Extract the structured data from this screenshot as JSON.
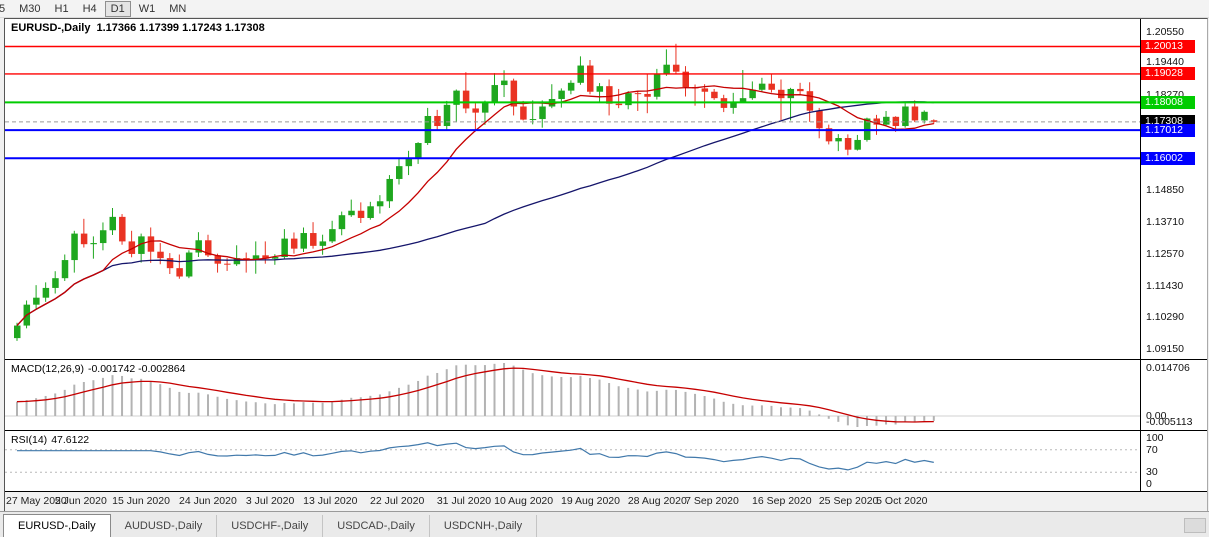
{
  "toolbar": {
    "buttons": [
      {
        "label": "5",
        "active": false
      },
      {
        "label": "M30",
        "active": false
      },
      {
        "label": "H1",
        "active": false
      },
      {
        "label": "H4",
        "active": false
      },
      {
        "label": "D1",
        "active": true
      },
      {
        "label": "W1",
        "active": false
      },
      {
        "label": "MN",
        "active": false
      }
    ]
  },
  "chart": {
    "title": "EURUSD-,Daily",
    "ohlc_text": "1.17366 1.17399 1.17243 1.17308"
  },
  "macd": {
    "label": "MACD(12,26,9)",
    "values_text": "-0.001742 -0.002864",
    "axis_max": "0.014706",
    "axis_zero": "0.00",
    "axis_min": "-0.005113"
  },
  "rsi": {
    "label": "RSI(14)",
    "value_text": "47.6122",
    "axis": [
      "100",
      "70",
      "30",
      "0"
    ],
    "levels": [
      70,
      30
    ]
  },
  "tabs": [
    {
      "label": "EURUSD-,Daily",
      "active": true
    },
    {
      "label": "AUDUSD-,Daily",
      "active": false
    },
    {
      "label": "USDCHF-,Daily",
      "active": false
    },
    {
      "label": "USDCAD-,Daily",
      "active": false
    },
    {
      "label": "USDCNH-,Daily",
      "active": false
    }
  ],
  "chart_data": {
    "type": "candlestick",
    "symbol": "EURUSD-",
    "timeframe": "Daily",
    "current_ohlc": {
      "open": 1.17366,
      "high": 1.17399,
      "low": 1.17243,
      "close": 1.17308
    },
    "current_price": 1.17308,
    "colors": {
      "up": "#1fa71f",
      "down": "#e93323",
      "ma_fast": "#c60000",
      "ma_slow": "#15156b",
      "macd_hist": "#b3b3b3",
      "macd_signal": "#c60000",
      "rsi_line": "#4179ab",
      "hline_red": "#ff0000",
      "hline_green": "#00cc00",
      "hline_blue": "#0000ff",
      "tag_black": "#000000"
    },
    "price_axis": {
      "view_max": 1.21,
      "view_min": 1.088,
      "grid_labels": [
        {
          "price": 1.2055,
          "text": "1.20550"
        },
        {
          "price": 1.1944,
          "text": "1.19440"
        },
        {
          "price": 1.1827,
          "text": "1.18270"
        },
        {
          "price": 1.1485,
          "text": "1.14850"
        },
        {
          "price": 1.1371,
          "text": "1.13710"
        },
        {
          "price": 1.1257,
          "text": "1.12570"
        },
        {
          "price": 1.1143,
          "text": "1.11430"
        },
        {
          "price": 1.1029,
          "text": "1.10290"
        },
        {
          "price": 1.0915,
          "text": "1.09150"
        }
      ],
      "tags": [
        {
          "price": 1.20013,
          "text": "1.20013",
          "bg": "#ff0000"
        },
        {
          "price": 1.19028,
          "text": "1.19028",
          "bg": "#ff0000"
        },
        {
          "price": 1.18008,
          "text": "1.18008",
          "bg": "#00cc00"
        },
        {
          "price": 1.17308,
          "text": "1.17308",
          "bg": "#000000"
        },
        {
          "price": 1.17012,
          "text": "1.17012",
          "bg": "#0000ff"
        },
        {
          "price": 1.16002,
          "text": "1.16002",
          "bg": "#0000ff"
        }
      ]
    },
    "hlines": [
      {
        "price": 1.20013,
        "color": "#ff0000",
        "thickness": 1.4
      },
      {
        "price": 1.19028,
        "color": "#ff0000",
        "thickness": 1.4
      },
      {
        "price": 1.18008,
        "color": "#00cc00",
        "thickness": 2
      },
      {
        "price": 1.17012,
        "color": "#0000ff",
        "thickness": 2
      },
      {
        "price": 1.16002,
        "color": "#0000ff",
        "thickness": 2
      }
    ],
    "date_labels": [
      {
        "index": 0,
        "text": "27 May 2020"
      },
      {
        "index": 7,
        "text": "5 Jun 2020"
      },
      {
        "index": 13,
        "text": "15 Jun 2020"
      },
      {
        "index": 20,
        "text": "24 Jun 2020"
      },
      {
        "index": 27,
        "text": "3 Jul 2020"
      },
      {
        "index": 33,
        "text": "13 Jul 2020"
      },
      {
        "index": 40,
        "text": "22 Jul 2020"
      },
      {
        "index": 47,
        "text": "31 Jul 2020"
      },
      {
        "index": 53,
        "text": "10 Aug 2020"
      },
      {
        "index": 60,
        "text": "19 Aug 2020"
      },
      {
        "index": 67,
        "text": "28 Aug 2020"
      },
      {
        "index": 73,
        "text": "7 Sep 2020"
      },
      {
        "index": 80,
        "text": "16 Sep 2020"
      },
      {
        "index": 87,
        "text": "25 Sep 2020"
      },
      {
        "index": 93,
        "text": "5 Oct 2020"
      }
    ],
    "candles": [
      [
        1.0955,
        1.101,
        1.0945,
        1.1
      ],
      [
        1.1,
        1.109,
        1.099,
        1.1075
      ],
      [
        1.1075,
        1.1145,
        1.106,
        1.11
      ],
      [
        1.11,
        1.1155,
        1.1085,
        1.1135
      ],
      [
        1.1135,
        1.1195,
        1.1115,
        1.117
      ],
      [
        1.117,
        1.1255,
        1.116,
        1.1235
      ],
      [
        1.1235,
        1.134,
        1.119,
        1.133
      ],
      [
        1.133,
        1.1383,
        1.128,
        1.1292
      ],
      [
        1.1292,
        1.132,
        1.124,
        1.1296
      ],
      [
        1.1296,
        1.137,
        1.127,
        1.1342
      ],
      [
        1.1342,
        1.1422,
        1.1325,
        1.139
      ],
      [
        1.139,
        1.14,
        1.129,
        1.1302
      ],
      [
        1.1302,
        1.134,
        1.1245,
        1.1257
      ],
      [
        1.1257,
        1.133,
        1.1226,
        1.132
      ],
      [
        1.132,
        1.1352,
        1.1225,
        1.1265
      ],
      [
        1.1265,
        1.1296,
        1.122,
        1.1242
      ],
      [
        1.1242,
        1.126,
        1.1185,
        1.1206
      ],
      [
        1.1206,
        1.1255,
        1.1168,
        1.1176
      ],
      [
        1.1176,
        1.127,
        1.117,
        1.1262
      ],
      [
        1.1262,
        1.1335,
        1.1246,
        1.1306
      ],
      [
        1.1306,
        1.1326,
        1.1246,
        1.1252
      ],
      [
        1.1252,
        1.1258,
        1.119,
        1.1222
      ],
      [
        1.1222,
        1.1242,
        1.1196,
        1.122
      ],
      [
        1.122,
        1.1288,
        1.1214,
        1.1242
      ],
      [
        1.1242,
        1.1262,
        1.119,
        1.1236
      ],
      [
        1.1236,
        1.1302,
        1.1186,
        1.1252
      ],
      [
        1.1252,
        1.1302,
        1.1222,
        1.124
      ],
      [
        1.124,
        1.1256,
        1.1218,
        1.1246
      ],
      [
        1.1246,
        1.1346,
        1.124,
        1.1312
      ],
      [
        1.1312,
        1.1334,
        1.1258,
        1.1276
      ],
      [
        1.1276,
        1.1352,
        1.1264,
        1.1332
      ],
      [
        1.1332,
        1.1371,
        1.1276,
        1.1286
      ],
      [
        1.1286,
        1.1326,
        1.1254,
        1.1302
      ],
      [
        1.1302,
        1.1376,
        1.1296,
        1.1346
      ],
      [
        1.1346,
        1.1409,
        1.1324,
        1.1396
      ],
      [
        1.1396,
        1.1452,
        1.139,
        1.1412
      ],
      [
        1.1412,
        1.1442,
        1.1368,
        1.1386
      ],
      [
        1.1386,
        1.1444,
        1.138,
        1.1428
      ],
      [
        1.1428,
        1.1468,
        1.1402,
        1.1446
      ],
      [
        1.1446,
        1.154,
        1.1422,
        1.1526
      ],
      [
        1.1526,
        1.1601,
        1.1506,
        1.1572
      ],
      [
        1.1572,
        1.1627,
        1.154,
        1.1598
      ],
      [
        1.1598,
        1.1658,
        1.158,
        1.1655
      ],
      [
        1.1655,
        1.1781,
        1.1648,
        1.1752
      ],
      [
        1.1752,
        1.1774,
        1.17,
        1.1716
      ],
      [
        1.1716,
        1.1806,
        1.1702,
        1.1792
      ],
      [
        1.1792,
        1.1847,
        1.173,
        1.1843
      ],
      [
        1.1843,
        1.1909,
        1.1762,
        1.1779
      ],
      [
        1.1779,
        1.1798,
        1.1696,
        1.1764
      ],
      [
        1.1764,
        1.1807,
        1.172,
        1.1803
      ],
      [
        1.1803,
        1.1906,
        1.179,
        1.1863
      ],
      [
        1.1863,
        1.1916,
        1.182,
        1.1879
      ],
      [
        1.1879,
        1.1886,
        1.1754,
        1.1786
      ],
      [
        1.1786,
        1.1806,
        1.1736,
        1.1739
      ],
      [
        1.1739,
        1.1808,
        1.1722,
        1.1741
      ],
      [
        1.1741,
        1.1808,
        1.171,
        1.1786
      ],
      [
        1.1786,
        1.1866,
        1.178,
        1.1813
      ],
      [
        1.1813,
        1.1851,
        1.1782,
        1.1843
      ],
      [
        1.1843,
        1.188,
        1.183,
        1.1871
      ],
      [
        1.1871,
        1.1966,
        1.1864,
        1.1933
      ],
      [
        1.1933,
        1.1953,
        1.183,
        1.1839
      ],
      [
        1.1839,
        1.187,
        1.18,
        1.1859
      ],
      [
        1.1859,
        1.1883,
        1.1754,
        1.1796
      ],
      [
        1.1796,
        1.1849,
        1.178,
        1.1791
      ],
      [
        1.1791,
        1.1841,
        1.1776,
        1.1834
      ],
      [
        1.1834,
        1.1841,
        1.177,
        1.1831
      ],
      [
        1.1831,
        1.1901,
        1.1762,
        1.1821
      ],
      [
        1.1821,
        1.1921,
        1.1811,
        1.1904
      ],
      [
        1.1904,
        1.1991,
        1.1896,
        1.1936
      ],
      [
        1.1936,
        1.2011,
        1.1901,
        1.1911
      ],
      [
        1.1911,
        1.1931,
        1.1822,
        1.1856
      ],
      [
        1.1856,
        1.1865,
        1.1789,
        1.1851
      ],
      [
        1.1851,
        1.1866,
        1.1781,
        1.1839
      ],
      [
        1.1839,
        1.1849,
        1.181,
        1.1816
      ],
      [
        1.1816,
        1.1828,
        1.1766,
        1.1781
      ],
      [
        1.1781,
        1.1835,
        1.176,
        1.1803
      ],
      [
        1.1803,
        1.1917,
        1.18,
        1.1816
      ],
      [
        1.1816,
        1.1876,
        1.181,
        1.1846
      ],
      [
        1.1846,
        1.1889,
        1.184,
        1.1868
      ],
      [
        1.1868,
        1.1901,
        1.1836,
        1.1846
      ],
      [
        1.1846,
        1.1883,
        1.1737,
        1.1816
      ],
      [
        1.1816,
        1.1853,
        1.1736,
        1.1849
      ],
      [
        1.1849,
        1.1871,
        1.1826,
        1.1841
      ],
      [
        1.1841,
        1.1873,
        1.1731,
        1.1771
      ],
      [
        1.1771,
        1.1781,
        1.1672,
        1.1708
      ],
      [
        1.1708,
        1.1721,
        1.165,
        1.1661
      ],
      [
        1.1661,
        1.1687,
        1.1626,
        1.1673
      ],
      [
        1.1673,
        1.1686,
        1.1611,
        1.1631
      ],
      [
        1.1631,
        1.1684,
        1.1628,
        1.1666
      ],
      [
        1.1666,
        1.1746,
        1.166,
        1.1743
      ],
      [
        1.1743,
        1.1756,
        1.1684,
        1.1721
      ],
      [
        1.1721,
        1.177,
        1.1717,
        1.1749
      ],
      [
        1.1749,
        1.1751,
        1.1695,
        1.1716
      ],
      [
        1.1716,
        1.1798,
        1.171,
        1.1786
      ],
      [
        1.1786,
        1.1808,
        1.173,
        1.1736
      ],
      [
        1.1736,
        1.1772,
        1.1725,
        1.1767
      ],
      [
        1.17366,
        1.17399,
        1.17243,
        1.17308
      ]
    ]
  }
}
